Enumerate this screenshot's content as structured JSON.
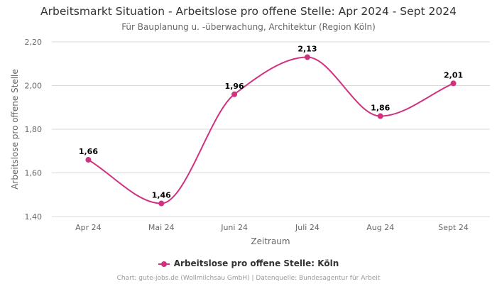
{
  "chart_data": {
    "type": "line",
    "title": "Arbeitsmarkt Situation - Arbeitslose pro offene Stelle: Apr 2024 - Sept 2024",
    "subtitle": "Für Bauplanung u. -überwachung, Architektur (Region Köln)",
    "xlabel": "Zeitraum",
    "ylabel": "Arbeitslose pro offene Stelle",
    "categories": [
      "Apr 24",
      "Mai 24",
      "Juni 24",
      "Juli 24",
      "Aug 24",
      "Sept 24"
    ],
    "series": [
      {
        "name": "Arbeitslose pro offene Stelle: Köln",
        "values": [
          1.66,
          1.46,
          1.96,
          2.13,
          1.86,
          2.01
        ],
        "labels": [
          "1,66",
          "1,46",
          "1,96",
          "2,13",
          "1,86",
          "2,01"
        ],
        "color": "#d0327f"
      }
    ],
    "ylim": [
      1.4,
      2.2
    ],
    "yticks": [
      1.4,
      1.6,
      1.8,
      2.0,
      2.2
    ],
    "ytick_labels": [
      "1,40",
      "1,60",
      "1,80",
      "2,00",
      "2,20"
    ],
    "grid": true,
    "legend": "bottom"
  },
  "credits": "Chart: gute-jobs.de (Wollmilchsau GmbH) | Datenquelle: Bundesagentur für Arbeit"
}
